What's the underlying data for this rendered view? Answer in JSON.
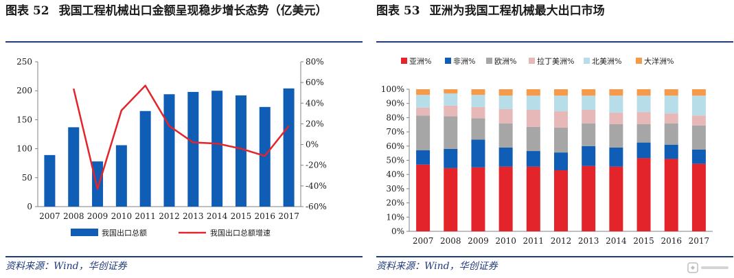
{
  "left": {
    "title_num": "图表 52",
    "title_text": "我国工程机械出口金额呈现稳步增长态势（亿美元）",
    "source": "资料来源：Wind，华创证券"
  },
  "right": {
    "title_num": "图表 53",
    "title_text": "亚洲为我国工程机械最大出口市场",
    "source": "资料来源：Wind，华创证券"
  },
  "colors": {
    "bar_blue": "#0f5db4",
    "line_red": "#e3242b",
    "asia": "#e3242b",
    "africa": "#0f5db4",
    "europe": "#a6a6a6",
    "latam": "#e6b8b7",
    "namerica": "#b7dde8",
    "oceania": "#f49a4a",
    "rule": "#1f3a7a"
  },
  "watermark_icon": "gelonghui-logo-icon",
  "chart_data": [
    {
      "type": "bar",
      "categories": [
        "2007",
        "2008",
        "2009",
        "2010",
        "2011",
        "2012",
        "2013",
        "2014",
        "2015",
        "2016",
        "2017"
      ],
      "series": [
        {
          "name": "我国出口总额",
          "type": "bar",
          "axis": "left",
          "values": [
            89,
            137,
            78,
            106,
            165,
            194,
            198,
            200,
            192,
            172,
            204
          ]
        },
        {
          "name": "我国出口总额增速",
          "type": "line",
          "axis": "right",
          "values": [
            null,
            54,
            -43,
            33,
            57,
            18,
            2,
            1,
            -4,
            -11,
            18
          ]
        }
      ],
      "y_left": {
        "lim": [
          0,
          250
        ],
        "ticks": [
          "0",
          "50",
          "100",
          "150",
          "200",
          "250"
        ]
      },
      "y_right": {
        "lim": [
          -60,
          80
        ],
        "ticks": [
          "-60%",
          "-40%",
          "-20%",
          "0%",
          "20%",
          "40%",
          "60%",
          "80%"
        ]
      },
      "legend_position": "bottom"
    },
    {
      "type": "bar",
      "stacked": true,
      "categories": [
        "2007",
        "2008",
        "2009",
        "2010",
        "2011",
        "2012",
        "2013",
        "2014",
        "2015",
        "2016",
        "2017"
      ],
      "series": [
        {
          "name": "亚洲%",
          "values": [
            47,
            44.5,
            45,
            45.5,
            45.5,
            43,
            46,
            45.5,
            51.5,
            51,
            47.5
          ]
        },
        {
          "name": "非洲%",
          "values": [
            10,
            13.5,
            19.5,
            13.5,
            11,
            12.5,
            14,
            13.5,
            11,
            10,
            10
          ]
        },
        {
          "name": "欧洲%",
          "values": [
            24.5,
            23,
            15,
            17,
            17,
            17.5,
            16,
            16.5,
            13,
            15,
            17
          ]
        },
        {
          "name": "拉丁美洲%",
          "values": [
            5.5,
            7.5,
            8,
            10,
            12,
            11.5,
            9.5,
            8,
            8.5,
            7,
            7
          ]
        },
        {
          "name": "北美洲%",
          "values": [
            9,
            8.5,
            8.5,
            9.5,
            10,
            11,
            10,
            12,
            11.5,
            12.5,
            14
          ]
        },
        {
          "name": "大洋洲%",
          "values": [
            4,
            3,
            4,
            4.5,
            4.5,
            4.5,
            4.5,
            4.5,
            4.5,
            4.5,
            4.5
          ]
        }
      ],
      "y": {
        "lim": [
          0,
          100
        ],
        "ticks": [
          "0%",
          "10%",
          "20%",
          "30%",
          "40%",
          "50%",
          "60%",
          "70%",
          "80%",
          "90%",
          "100%"
        ]
      },
      "legend_position": "top"
    }
  ]
}
